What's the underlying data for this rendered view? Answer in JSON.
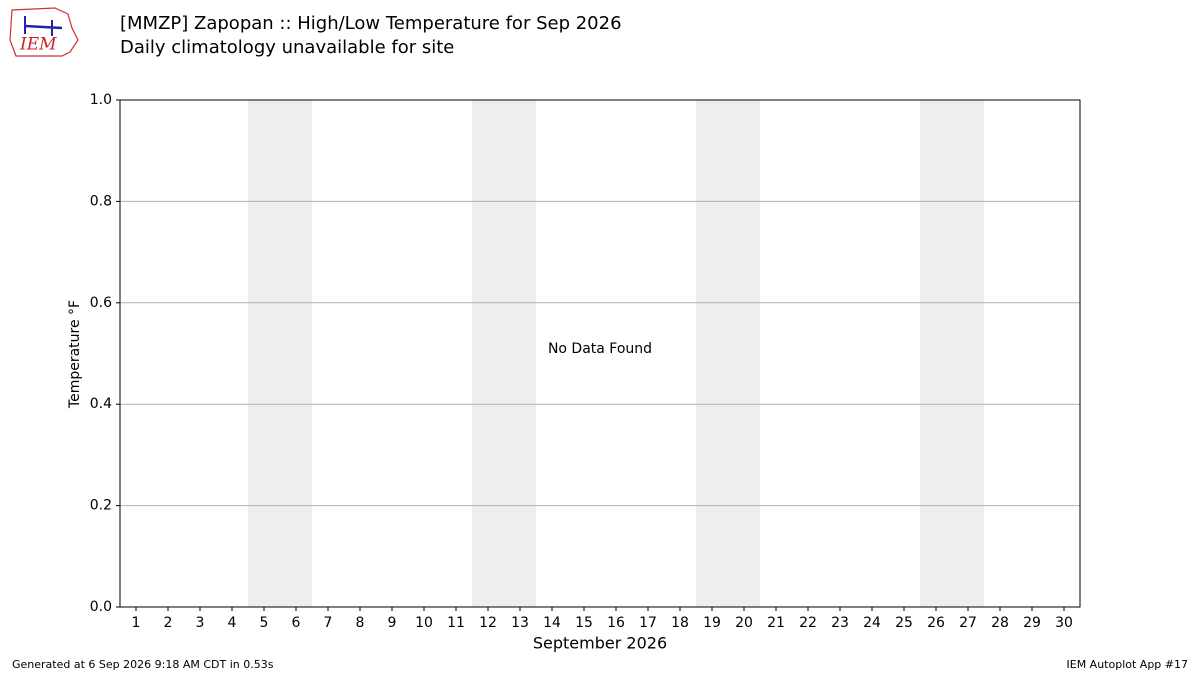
{
  "chart_data": {
    "type": "line",
    "logo_text": "IEM",
    "title": "[MMZP] Zapopan :: High/Low Temperature for Sep 2026",
    "subtitle": "Daily climatology unavailable for site",
    "ylabel": "Temperature °F",
    "xlabel": "September 2026",
    "annotation": "No Data Found",
    "footer_left": "Generated at 6 Sep 2026 9:18 AM CDT in 0.53s",
    "footer_right": "IEM Autoplot App #17",
    "series": [],
    "xlim": [
      0.5,
      30.5
    ],
    "xticks": [
      1,
      2,
      3,
      4,
      5,
      6,
      7,
      8,
      9,
      10,
      11,
      12,
      13,
      14,
      15,
      16,
      17,
      18,
      19,
      20,
      21,
      22,
      23,
      24,
      25,
      26,
      27,
      28,
      29,
      30
    ],
    "ylim": [
      0,
      1
    ],
    "yticks": [
      {
        "value": 0,
        "label": "0.0"
      },
      0.2,
      0.4,
      0.6,
      0.8,
      {
        "value": 1,
        "label": "1.0"
      }
    ],
    "grid": true,
    "shaded_spans": [
      [
        4.5,
        6.5
      ],
      [
        11.5,
        13.5
      ],
      [
        18.5,
        20.5
      ],
      [
        25.5,
        27.5
      ]
    ],
    "shade_color": "#eeeeee"
  }
}
